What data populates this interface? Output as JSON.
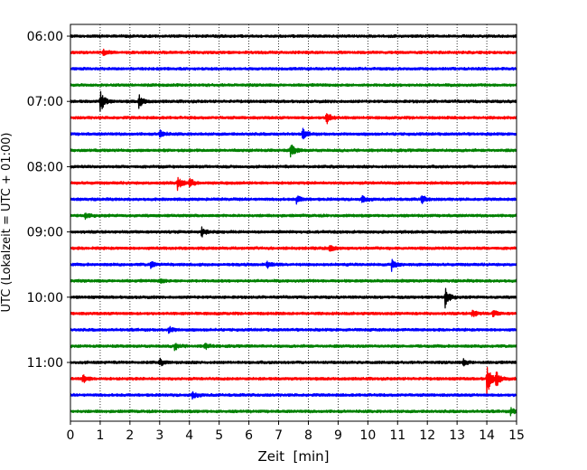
{
  "chart_data": {
    "type": "line",
    "title": "",
    "xlabel": "Zeit  [min]",
    "ylabel": "UTC (Lokalzeit = UTC + 01:00)",
    "xlim": [
      0,
      15
    ],
    "x_ticks": [
      0,
      1,
      2,
      3,
      4,
      5,
      6,
      7,
      8,
      9,
      10,
      11,
      12,
      13,
      14,
      15
    ],
    "y_ticks": [
      "06:00",
      "07:00",
      "08:00",
      "09:00",
      "10:00",
      "11:00"
    ],
    "grid": "vertical dotted lines at each minute",
    "legend": "none",
    "trace_colors": [
      "#000000",
      "#ff0000",
      "#0000ff",
      "#008000"
    ],
    "minutes_per_trace": 15,
    "start_time": "06:00",
    "end_time": "11:45",
    "traces": [
      {
        "start": "06:00",
        "color": "#000000",
        "events": []
      },
      {
        "start": "06:15",
        "color": "#ff0000",
        "events": [
          {
            "t": 1.1,
            "amp": 0.35
          }
        ]
      },
      {
        "start": "06:30",
        "color": "#0000ff",
        "events": []
      },
      {
        "start": "06:45",
        "color": "#008000",
        "events": []
      },
      {
        "start": "07:00",
        "color": "#000000",
        "events": [
          {
            "t": 1.0,
            "amp": 1.4
          },
          {
            "t": 2.3,
            "amp": 0.8
          }
        ]
      },
      {
        "start": "07:15",
        "color": "#ff0000",
        "events": [
          {
            "t": 8.6,
            "amp": 0.9
          }
        ]
      },
      {
        "start": "07:30",
        "color": "#0000ff",
        "events": [
          {
            "t": 3.0,
            "amp": 0.5
          },
          {
            "t": 7.8,
            "amp": 0.6
          }
        ]
      },
      {
        "start": "07:45",
        "color": "#008000",
        "events": [
          {
            "t": 7.4,
            "amp": 0.9
          }
        ]
      },
      {
        "start": "08:00",
        "color": "#000000",
        "events": []
      },
      {
        "start": "08:15",
        "color": "#ff0000",
        "events": [
          {
            "t": 3.6,
            "amp": 0.8
          },
          {
            "t": 4.0,
            "amp": 0.6
          }
        ]
      },
      {
        "start": "08:30",
        "color": "#0000ff",
        "events": [
          {
            "t": 7.6,
            "amp": 0.5
          },
          {
            "t": 9.8,
            "amp": 0.4
          },
          {
            "t": 11.8,
            "amp": 0.5
          }
        ]
      },
      {
        "start": "08:45",
        "color": "#008000",
        "events": [
          {
            "t": 0.5,
            "amp": 0.4
          }
        ]
      },
      {
        "start": "09:00",
        "color": "#000000",
        "events": [
          {
            "t": 4.4,
            "amp": 0.6
          }
        ]
      },
      {
        "start": "09:15",
        "color": "#ff0000",
        "events": [
          {
            "t": 8.7,
            "amp": 0.4
          }
        ]
      },
      {
        "start": "09:30",
        "color": "#0000ff",
        "events": [
          {
            "t": 2.7,
            "amp": 0.5
          },
          {
            "t": 6.6,
            "amp": 0.4
          },
          {
            "t": 10.8,
            "amp": 0.8
          }
        ]
      },
      {
        "start": "09:45",
        "color": "#008000",
        "events": [
          {
            "t": 3.0,
            "amp": 0.3
          }
        ]
      },
      {
        "start": "10:00",
        "color": "#000000",
        "events": [
          {
            "t": 12.6,
            "amp": 1.2
          }
        ]
      },
      {
        "start": "10:15",
        "color": "#ff0000",
        "events": [
          {
            "t": 13.5,
            "amp": 0.5
          },
          {
            "t": 14.2,
            "amp": 0.4
          }
        ]
      },
      {
        "start": "10:30",
        "color": "#0000ff",
        "events": [
          {
            "t": 3.3,
            "amp": 0.4
          }
        ]
      },
      {
        "start": "10:45",
        "color": "#008000",
        "events": [
          {
            "t": 3.5,
            "amp": 0.5
          },
          {
            "t": 4.5,
            "amp": 0.4
          }
        ]
      },
      {
        "start": "11:00",
        "color": "#000000",
        "events": [
          {
            "t": 3.0,
            "amp": 0.4
          },
          {
            "t": 13.2,
            "amp": 0.4
          }
        ]
      },
      {
        "start": "11:15",
        "color": "#ff0000",
        "events": [
          {
            "t": 0.4,
            "amp": 0.6
          },
          {
            "t": 14.0,
            "amp": 2.0
          },
          {
            "t": 14.3,
            "amp": 0.9
          }
        ]
      },
      {
        "start": "11:30",
        "color": "#0000ff",
        "events": [
          {
            "t": 4.1,
            "amp": 0.4
          }
        ]
      },
      {
        "start": "11:45",
        "color": "#008000",
        "events": [
          {
            "t": 14.8,
            "amp": 0.4
          }
        ]
      }
    ]
  }
}
